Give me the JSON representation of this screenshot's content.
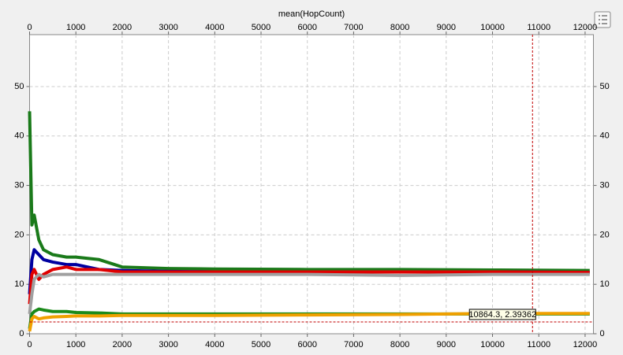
{
  "chart_data": {
    "type": "line",
    "title": "mean(HopCount)",
    "x": [
      0,
      50,
      100,
      200,
      300,
      500,
      800,
      1000,
      1500,
      2000,
      3000,
      4000,
      6000,
      8000,
      10000,
      12100
    ],
    "series": [
      {
        "color": "#1a7a1a",
        "values": [
          45,
          22,
          24,
          19,
          17,
          16,
          15.5,
          15.5,
          15,
          13.5,
          13.2,
          13.1,
          13,
          13,
          12.9,
          12.8
        ]
      },
      {
        "color": "#0000a0",
        "values": [
          8,
          15,
          17,
          16,
          15,
          14.5,
          14,
          14,
          13,
          12.8,
          12.6,
          12.5,
          12.5,
          12.5,
          12.5,
          12.4
        ]
      },
      {
        "color": "#e00000",
        "values": [
          6,
          12,
          13,
          11,
          12,
          13,
          13.5,
          13,
          13,
          12.5,
          12.5,
          12.5,
          12.5,
          12.5,
          12.5,
          12.4
        ]
      },
      {
        "color": "#a0a0a0",
        "values": [
          4,
          8,
          11,
          12,
          11.5,
          12,
          12,
          12,
          12,
          12,
          12,
          12,
          12,
          11.8,
          12,
          12
        ]
      },
      {
        "color": "#1a8a1a",
        "values": [
          1,
          4,
          4.5,
          5,
          4.8,
          4.5,
          4.5,
          4.3,
          4.2,
          4,
          4,
          4,
          4,
          4,
          4,
          4
        ]
      },
      {
        "color": "#f0a000",
        "values": [
          0.5,
          3,
          3.5,
          3,
          3.2,
          3.4,
          3.5,
          3.6,
          3.6,
          3.7,
          3.7,
          3.7,
          3.8,
          3.9,
          4.1,
          4.1
        ]
      }
    ],
    "xlim": [
      0,
      12180
    ],
    "xticks": [
      0,
      1000,
      2000,
      3000,
      4000,
      5000,
      6000,
      7000,
      8000,
      9000,
      10000,
      11000,
      12000
    ],
    "ylim": [
      0,
      60.5
    ],
    "yticks": [
      0,
      10,
      20,
      30,
      40,
      50
    ],
    "grid": true,
    "crosshair": {
      "x": 10864.3,
      "y": 2.39362,
      "label": "10864.3, 2.39362"
    }
  }
}
